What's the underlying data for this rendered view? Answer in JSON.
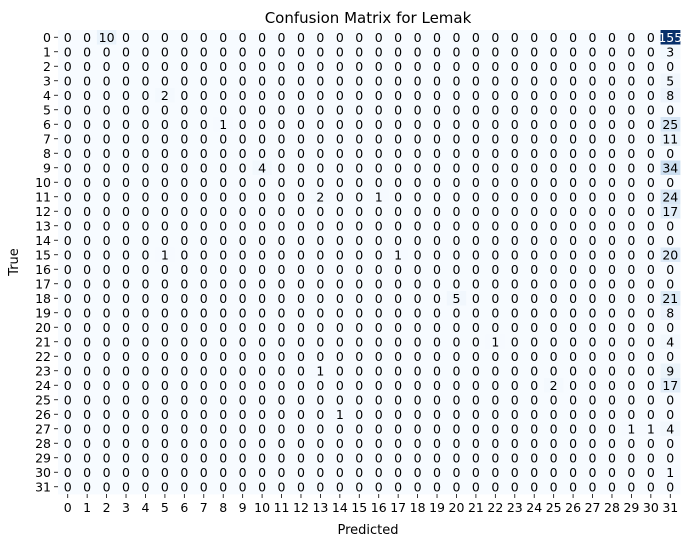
{
  "chart_data": {
    "type": "heatmap",
    "title": "Confusion Matrix for Lemak",
    "xlabel": "Predicted",
    "ylabel": "True",
    "x_tick_labels": [
      "0",
      "1",
      "2",
      "3",
      "4",
      "5",
      "6",
      "7",
      "8",
      "9",
      "10",
      "11",
      "12",
      "13",
      "14",
      "15",
      "16",
      "17",
      "18",
      "19",
      "20",
      "21",
      "22",
      "23",
      "24",
      "25",
      "26",
      "27",
      "28",
      "29",
      "30",
      "31"
    ],
    "y_tick_labels": [
      "0",
      "1",
      "2",
      "3",
      "4",
      "5",
      "6",
      "7",
      "8",
      "9",
      "10",
      "11",
      "12",
      "13",
      "14",
      "15",
      "16",
      "17",
      "18",
      "19",
      "20",
      "21",
      "22",
      "23",
      "24",
      "25",
      "26",
      "27",
      "28",
      "29",
      "30",
      "31"
    ],
    "value_range": [
      0,
      155
    ],
    "colormap": "Blues",
    "colorbar": false,
    "annotated": true,
    "matrix": [
      [
        0,
        0,
        10,
        0,
        0,
        0,
        0,
        0,
        0,
        0,
        0,
        0,
        0,
        0,
        0,
        0,
        0,
        0,
        0,
        0,
        0,
        0,
        0,
        0,
        0,
        0,
        0,
        0,
        0,
        0,
        0,
        155
      ],
      [
        0,
        0,
        0,
        0,
        0,
        0,
        0,
        0,
        0,
        0,
        0,
        0,
        0,
        0,
        0,
        0,
        0,
        0,
        0,
        0,
        0,
        0,
        0,
        0,
        0,
        0,
        0,
        0,
        0,
        0,
        0,
        3
      ],
      [
        0,
        0,
        0,
        0,
        0,
        0,
        0,
        0,
        0,
        0,
        0,
        0,
        0,
        0,
        0,
        0,
        0,
        0,
        0,
        0,
        0,
        0,
        0,
        0,
        0,
        0,
        0,
        0,
        0,
        0,
        0,
        0
      ],
      [
        0,
        0,
        0,
        0,
        0,
        0,
        0,
        0,
        0,
        0,
        0,
        0,
        0,
        0,
        0,
        0,
        0,
        0,
        0,
        0,
        0,
        0,
        0,
        0,
        0,
        0,
        0,
        0,
        0,
        0,
        0,
        5
      ],
      [
        0,
        0,
        0,
        0,
        0,
        2,
        0,
        0,
        0,
        0,
        0,
        0,
        0,
        0,
        0,
        0,
        0,
        0,
        0,
        0,
        0,
        0,
        0,
        0,
        0,
        0,
        0,
        0,
        0,
        0,
        0,
        8
      ],
      [
        0,
        0,
        0,
        0,
        0,
        0,
        0,
        0,
        0,
        0,
        0,
        0,
        0,
        0,
        0,
        0,
        0,
        0,
        0,
        0,
        0,
        0,
        0,
        0,
        0,
        0,
        0,
        0,
        0,
        0,
        0,
        0
      ],
      [
        0,
        0,
        0,
        0,
        0,
        0,
        0,
        0,
        1,
        0,
        0,
        0,
        0,
        0,
        0,
        0,
        0,
        0,
        0,
        0,
        0,
        0,
        0,
        0,
        0,
        0,
        0,
        0,
        0,
        0,
        0,
        25
      ],
      [
        0,
        0,
        0,
        0,
        0,
        0,
        0,
        0,
        0,
        0,
        0,
        0,
        0,
        0,
        0,
        0,
        0,
        0,
        0,
        0,
        0,
        0,
        0,
        0,
        0,
        0,
        0,
        0,
        0,
        0,
        0,
        11
      ],
      [
        0,
        0,
        0,
        0,
        0,
        0,
        0,
        0,
        0,
        0,
        0,
        0,
        0,
        0,
        0,
        0,
        0,
        0,
        0,
        0,
        0,
        0,
        0,
        0,
        0,
        0,
        0,
        0,
        0,
        0,
        0,
        0
      ],
      [
        0,
        0,
        0,
        0,
        0,
        0,
        0,
        0,
        0,
        0,
        4,
        0,
        0,
        0,
        0,
        0,
        0,
        0,
        0,
        0,
        0,
        0,
        0,
        0,
        0,
        0,
        0,
        0,
        0,
        0,
        0,
        34
      ],
      [
        0,
        0,
        0,
        0,
        0,
        0,
        0,
        0,
        0,
        0,
        0,
        0,
        0,
        0,
        0,
        0,
        0,
        0,
        0,
        0,
        0,
        0,
        0,
        0,
        0,
        0,
        0,
        0,
        0,
        0,
        0,
        0
      ],
      [
        0,
        0,
        0,
        0,
        0,
        0,
        0,
        0,
        0,
        0,
        0,
        0,
        0,
        2,
        0,
        0,
        1,
        0,
        0,
        0,
        0,
        0,
        0,
        0,
        0,
        0,
        0,
        0,
        0,
        0,
        0,
        24
      ],
      [
        0,
        0,
        0,
        0,
        0,
        0,
        0,
        0,
        0,
        0,
        0,
        0,
        0,
        0,
        0,
        0,
        0,
        0,
        0,
        0,
        0,
        0,
        0,
        0,
        0,
        0,
        0,
        0,
        0,
        0,
        0,
        17
      ],
      [
        0,
        0,
        0,
        0,
        0,
        0,
        0,
        0,
        0,
        0,
        0,
        0,
        0,
        0,
        0,
        0,
        0,
        0,
        0,
        0,
        0,
        0,
        0,
        0,
        0,
        0,
        0,
        0,
        0,
        0,
        0,
        0
      ],
      [
        0,
        0,
        0,
        0,
        0,
        0,
        0,
        0,
        0,
        0,
        0,
        0,
        0,
        0,
        0,
        0,
        0,
        0,
        0,
        0,
        0,
        0,
        0,
        0,
        0,
        0,
        0,
        0,
        0,
        0,
        0,
        0
      ],
      [
        0,
        0,
        0,
        0,
        0,
        1,
        0,
        0,
        0,
        0,
        0,
        0,
        0,
        0,
        0,
        0,
        0,
        1,
        0,
        0,
        0,
        0,
        0,
        0,
        0,
        0,
        0,
        0,
        0,
        0,
        0,
        20
      ],
      [
        0,
        0,
        0,
        0,
        0,
        0,
        0,
        0,
        0,
        0,
        0,
        0,
        0,
        0,
        0,
        0,
        0,
        0,
        0,
        0,
        0,
        0,
        0,
        0,
        0,
        0,
        0,
        0,
        0,
        0,
        0,
        0
      ],
      [
        0,
        0,
        0,
        0,
        0,
        0,
        0,
        0,
        0,
        0,
        0,
        0,
        0,
        0,
        0,
        0,
        0,
        0,
        0,
        0,
        0,
        0,
        0,
        0,
        0,
        0,
        0,
        0,
        0,
        0,
        0,
        0
      ],
      [
        0,
        0,
        0,
        0,
        0,
        0,
        0,
        0,
        0,
        0,
        0,
        0,
        0,
        0,
        0,
        0,
        0,
        0,
        0,
        0,
        5,
        0,
        0,
        0,
        0,
        0,
        0,
        0,
        0,
        0,
        0,
        21
      ],
      [
        0,
        0,
        0,
        0,
        0,
        0,
        0,
        0,
        0,
        0,
        0,
        0,
        0,
        0,
        0,
        0,
        0,
        0,
        0,
        0,
        0,
        0,
        0,
        0,
        0,
        0,
        0,
        0,
        0,
        0,
        0,
        8
      ],
      [
        0,
        0,
        0,
        0,
        0,
        0,
        0,
        0,
        0,
        0,
        0,
        0,
        0,
        0,
        0,
        0,
        0,
        0,
        0,
        0,
        0,
        0,
        0,
        0,
        0,
        0,
        0,
        0,
        0,
        0,
        0,
        0
      ],
      [
        0,
        0,
        0,
        0,
        0,
        0,
        0,
        0,
        0,
        0,
        0,
        0,
        0,
        0,
        0,
        0,
        0,
        0,
        0,
        0,
        0,
        0,
        1,
        0,
        0,
        0,
        0,
        0,
        0,
        0,
        0,
        4
      ],
      [
        0,
        0,
        0,
        0,
        0,
        0,
        0,
        0,
        0,
        0,
        0,
        0,
        0,
        0,
        0,
        0,
        0,
        0,
        0,
        0,
        0,
        0,
        0,
        0,
        0,
        0,
        0,
        0,
        0,
        0,
        0,
        0
      ],
      [
        0,
        0,
        0,
        0,
        0,
        0,
        0,
        0,
        0,
        0,
        0,
        0,
        0,
        1,
        0,
        0,
        0,
        0,
        0,
        0,
        0,
        0,
        0,
        0,
        0,
        0,
        0,
        0,
        0,
        0,
        0,
        9
      ],
      [
        0,
        0,
        0,
        0,
        0,
        0,
        0,
        0,
        0,
        0,
        0,
        0,
        0,
        0,
        0,
        0,
        0,
        0,
        0,
        0,
        0,
        0,
        0,
        0,
        0,
        2,
        0,
        0,
        0,
        0,
        0,
        17
      ],
      [
        0,
        0,
        0,
        0,
        0,
        0,
        0,
        0,
        0,
        0,
        0,
        0,
        0,
        0,
        0,
        0,
        0,
        0,
        0,
        0,
        0,
        0,
        0,
        0,
        0,
        0,
        0,
        0,
        0,
        0,
        0,
        0
      ],
      [
        0,
        0,
        0,
        0,
        0,
        0,
        0,
        0,
        0,
        0,
        0,
        0,
        0,
        0,
        1,
        0,
        0,
        0,
        0,
        0,
        0,
        0,
        0,
        0,
        0,
        0,
        0,
        0,
        0,
        0,
        0,
        0
      ],
      [
        0,
        0,
        0,
        0,
        0,
        0,
        0,
        0,
        0,
        0,
        0,
        0,
        0,
        0,
        0,
        0,
        0,
        0,
        0,
        0,
        0,
        0,
        0,
        0,
        0,
        0,
        0,
        0,
        0,
        1,
        1,
        4
      ],
      [
        0,
        0,
        0,
        0,
        0,
        0,
        0,
        0,
        0,
        0,
        0,
        0,
        0,
        0,
        0,
        0,
        0,
        0,
        0,
        0,
        0,
        0,
        0,
        0,
        0,
        0,
        0,
        0,
        0,
        0,
        0,
        0
      ],
      [
        0,
        0,
        0,
        0,
        0,
        0,
        0,
        0,
        0,
        0,
        0,
        0,
        0,
        0,
        0,
        0,
        0,
        0,
        0,
        0,
        0,
        0,
        0,
        0,
        0,
        0,
        0,
        0,
        0,
        0,
        0,
        0
      ],
      [
        0,
        0,
        0,
        0,
        0,
        0,
        0,
        0,
        0,
        0,
        0,
        0,
        0,
        0,
        0,
        0,
        0,
        0,
        0,
        0,
        0,
        0,
        0,
        0,
        0,
        0,
        0,
        0,
        0,
        0,
        0,
        1
      ],
      [
        0,
        0,
        0,
        0,
        0,
        0,
        0,
        0,
        0,
        0,
        0,
        0,
        0,
        0,
        0,
        0,
        0,
        0,
        0,
        0,
        0,
        0,
        0,
        0,
        0,
        0,
        0,
        0,
        0,
        0,
        0,
        0
      ]
    ]
  }
}
